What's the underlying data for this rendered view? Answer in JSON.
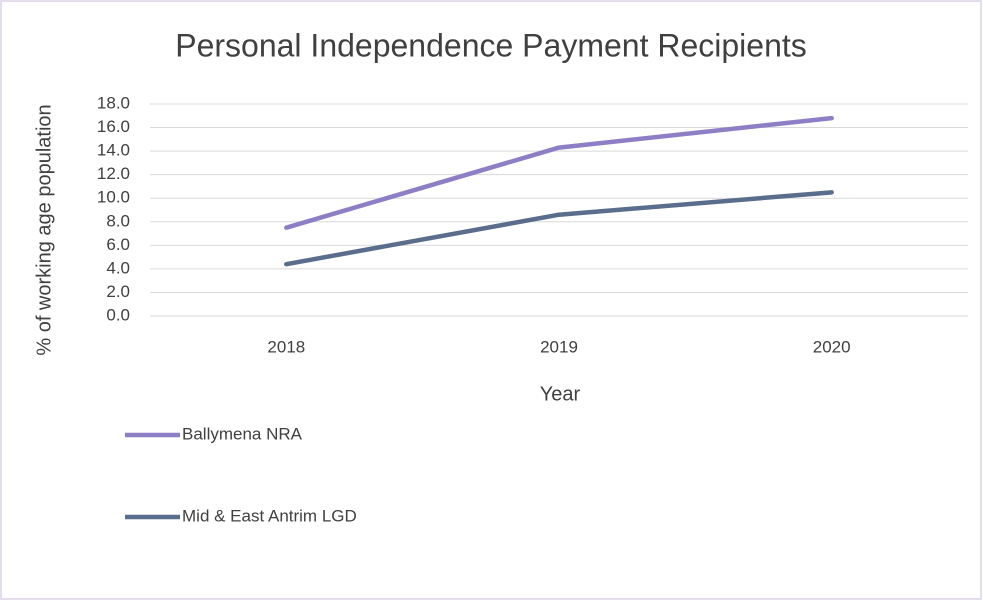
{
  "chart_data": {
    "type": "line",
    "title": "Personal Independence Payment Recipients",
    "x_label": "Year",
    "y_label": "% of working age population",
    "categories": [
      "2018",
      "2019",
      "2020"
    ],
    "series": [
      {
        "name": "Ballymena NRA",
        "color": "#8e7ec6",
        "values": [
          7.5,
          14.3,
          16.8
        ]
      },
      {
        "name": "Mid & East Antrim LGD",
        "color": "#5a6d8c",
        "values": [
          4.4,
          8.6,
          10.5
        ]
      }
    ],
    "ylim": [
      0,
      18
    ],
    "yticks": [
      {
        "value": 0,
        "label": "0.0"
      },
      {
        "value": 2,
        "label": "2.0"
      },
      {
        "value": 4,
        "label": "4.0"
      },
      {
        "value": 6,
        "label": "6.0"
      },
      {
        "value": 8,
        "label": "8.0"
      },
      {
        "value": 10,
        "label": "10.0"
      },
      {
        "value": 12,
        "label": "12.0"
      },
      {
        "value": 14,
        "label": "14.0"
      },
      {
        "value": 16,
        "label": "16.0"
      },
      {
        "value": 18,
        "label": "18.0"
      }
    ],
    "grid": true
  }
}
